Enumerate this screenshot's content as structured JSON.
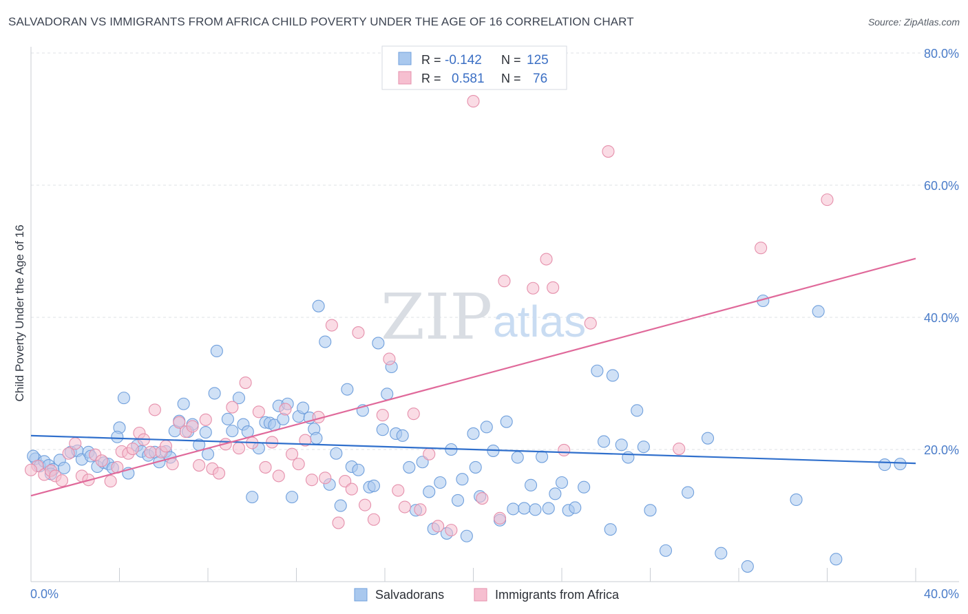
{
  "title": "SALVADORAN VS IMMIGRANTS FROM AFRICA CHILD POVERTY UNDER THE AGE OF 16 CORRELATION CHART",
  "source": "Source: ZipAtlas.com",
  "watermark": {
    "zip": "ZIP",
    "atlas": "atlas"
  },
  "legend": {
    "row1": {
      "r_label": "R =",
      "r_value": "-0.142",
      "n_label": "N =",
      "n_value": "125"
    },
    "row2": {
      "r_label": "R =",
      "r_value": "0.581",
      "n_label": "N =",
      "n_value": "76"
    }
  },
  "colors": {
    "blue_fill": "#a9c8ee",
    "blue_stroke": "#6f9fdc",
    "blue_line": "#2f6fcc",
    "pink_fill": "#f6bfd0",
    "pink_stroke": "#e58fab",
    "pink_line": "#e0699a",
    "grid": "#dde1e6",
    "axis_text": "#4a7cc9"
  },
  "chart_data": {
    "type": "scatter",
    "title": "SALVADORAN VS IMMIGRANTS FROM AFRICA CHILD POVERTY UNDER THE AGE OF 16 CORRELATION CHART",
    "xlabel": "",
    "ylabel": "Child Poverty Under the Age of 16",
    "xlim": [
      0,
      40
    ],
    "ylim": [
      0,
      80
    ],
    "x_tick_labels": [
      "0.0%",
      "40.0%"
    ],
    "y_ticks": [
      20,
      40,
      60,
      80
    ],
    "y_tick_labels": [
      "20.0%",
      "40.0%",
      "60.0%",
      "80.0%"
    ],
    "grid": true,
    "legend_position": "top-center",
    "series": [
      {
        "name": "Salvadorans",
        "color": "#a9c8ee",
        "R": -0.142,
        "N": 125,
        "trend": {
          "x": [
            0,
            40
          ],
          "y": [
            22.1,
            17.9
          ]
        },
        "points": [
          [
            0.2,
            18.6
          ],
          [
            0.4,
            17.5
          ],
          [
            0.6,
            18.2
          ],
          [
            0.8,
            17.6
          ],
          [
            1.0,
            17.0
          ],
          [
            1.3,
            18.4
          ],
          [
            1.5,
            17.2
          ],
          [
            1.8,
            19.6
          ],
          [
            2.1,
            19.8
          ],
          [
            2.3,
            18.5
          ],
          [
            2.6,
            19.6
          ],
          [
            2.7,
            19.0
          ],
          [
            3.0,
            17.4
          ],
          [
            3.3,
            18.0
          ],
          [
            3.5,
            17.8
          ],
          [
            3.7,
            17.2
          ],
          [
            4.0,
            23.3
          ],
          [
            4.2,
            27.8
          ],
          [
            4.4,
            16.4
          ],
          [
            4.8,
            20.6
          ],
          [
            5.0,
            19.7
          ],
          [
            5.3,
            19.1
          ],
          [
            5.6,
            19.6
          ],
          [
            5.8,
            18.1
          ],
          [
            6.1,
            19.7
          ],
          [
            6.3,
            18.8
          ],
          [
            6.5,
            22.8
          ],
          [
            6.7,
            24.3
          ],
          [
            6.9,
            26.9
          ],
          [
            7.1,
            22.7
          ],
          [
            7.3,
            23.8
          ],
          [
            7.6,
            20.7
          ],
          [
            7.9,
            22.6
          ],
          [
            8.0,
            19.3
          ],
          [
            8.3,
            28.5
          ],
          [
            8.4,
            34.9
          ],
          [
            8.9,
            24.6
          ],
          [
            9.1,
            22.8
          ],
          [
            9.4,
            27.8
          ],
          [
            9.6,
            23.8
          ],
          [
            9.8,
            22.7
          ],
          [
            10.0,
            12.8
          ],
          [
            10.3,
            20.2
          ],
          [
            10.6,
            24.1
          ],
          [
            10.8,
            24.0
          ],
          [
            11.0,
            23.7
          ],
          [
            11.2,
            26.6
          ],
          [
            11.4,
            24.6
          ],
          [
            11.6,
            26.9
          ],
          [
            11.8,
            12.8
          ],
          [
            12.1,
            25.0
          ],
          [
            12.3,
            26.3
          ],
          [
            12.6,
            24.8
          ],
          [
            12.8,
            23.1
          ],
          [
            13.0,
            41.7
          ],
          [
            13.3,
            36.3
          ],
          [
            13.5,
            14.7
          ],
          [
            13.8,
            19.4
          ],
          [
            14.0,
            11.5
          ],
          [
            14.3,
            29.1
          ],
          [
            14.5,
            17.4
          ],
          [
            14.8,
            16.9
          ],
          [
            15.0,
            25.9
          ],
          [
            15.3,
            14.3
          ],
          [
            15.5,
            14.5
          ],
          [
            15.7,
            36.1
          ],
          [
            15.9,
            23.0
          ],
          [
            16.1,
            28.4
          ],
          [
            16.3,
            32.5
          ],
          [
            16.5,
            22.4
          ],
          [
            16.8,
            22.1
          ],
          [
            17.1,
            17.3
          ],
          [
            17.4,
            10.8
          ],
          [
            17.7,
            18.1
          ],
          [
            18.0,
            13.6
          ],
          [
            18.2,
            8.0
          ],
          [
            18.5,
            15.0
          ],
          [
            18.8,
            7.3
          ],
          [
            19.0,
            20.0
          ],
          [
            19.3,
            12.3
          ],
          [
            19.5,
            15.5
          ],
          [
            19.7,
            6.9
          ],
          [
            20.0,
            22.4
          ],
          [
            20.3,
            12.9
          ],
          [
            20.6,
            23.4
          ],
          [
            20.9,
            19.8
          ],
          [
            21.2,
            9.3
          ],
          [
            21.5,
            24.2
          ],
          [
            21.8,
            11.0
          ],
          [
            22.0,
            18.8
          ],
          [
            22.3,
            11.1
          ],
          [
            22.6,
            14.6
          ],
          [
            22.8,
            10.9
          ],
          [
            23.1,
            18.9
          ],
          [
            23.4,
            11.1
          ],
          [
            23.7,
            13.3
          ],
          [
            24.0,
            15.0
          ],
          [
            24.3,
            10.8
          ],
          [
            24.6,
            11.2
          ],
          [
            25.0,
            14.3
          ],
          [
            25.6,
            31.9
          ],
          [
            25.9,
            21.2
          ],
          [
            26.2,
            7.9
          ],
          [
            26.3,
            31.2
          ],
          [
            26.7,
            20.7
          ],
          [
            27.0,
            18.8
          ],
          [
            27.4,
            25.9
          ],
          [
            27.7,
            20.4
          ],
          [
            28.0,
            10.8
          ],
          [
            28.7,
            4.7
          ],
          [
            29.7,
            13.5
          ],
          [
            30.6,
            21.7
          ],
          [
            31.2,
            4.3
          ],
          [
            32.4,
            2.3
          ],
          [
            33.1,
            42.5
          ],
          [
            34.6,
            12.4
          ],
          [
            35.6,
            40.9
          ],
          [
            36.4,
            3.4
          ],
          [
            38.6,
            17.7
          ],
          [
            39.3,
            17.8
          ],
          [
            0.1,
            19.0
          ],
          [
            0.9,
            16.3
          ],
          [
            3.9,
            21.9
          ],
          [
            12.9,
            21.7
          ],
          [
            20.1,
            17.3
          ]
        ]
      },
      {
        "name": "Immigrants from Africa",
        "color": "#f6bfd0",
        "R": 0.581,
        "N": 76,
        "trend": {
          "x": [
            0,
            40
          ],
          "y": [
            13.0,
            48.9
          ]
        },
        "points": [
          [
            0.3,
            17.5
          ],
          [
            0.6,
            16.2
          ],
          [
            0.9,
            16.8
          ],
          [
            1.1,
            16.0
          ],
          [
            1.4,
            15.3
          ],
          [
            1.7,
            19.4
          ],
          [
            2.0,
            20.9
          ],
          [
            2.3,
            16.0
          ],
          [
            2.6,
            15.4
          ],
          [
            2.9,
            19.2
          ],
          [
            3.2,
            18.3
          ],
          [
            3.6,
            15.2
          ],
          [
            3.9,
            17.3
          ],
          [
            4.1,
            19.7
          ],
          [
            4.4,
            19.4
          ],
          [
            4.6,
            20.1
          ],
          [
            4.9,
            22.5
          ],
          [
            5.1,
            21.5
          ],
          [
            5.4,
            19.6
          ],
          [
            5.6,
            26.0
          ],
          [
            5.9,
            19.6
          ],
          [
            6.1,
            20.5
          ],
          [
            6.4,
            17.8
          ],
          [
            6.7,
            24.1
          ],
          [
            7.0,
            22.7
          ],
          [
            7.3,
            23.5
          ],
          [
            7.6,
            17.6
          ],
          [
            7.9,
            24.5
          ],
          [
            8.2,
            17.1
          ],
          [
            8.5,
            16.4
          ],
          [
            8.8,
            20.8
          ],
          [
            9.1,
            26.4
          ],
          [
            9.4,
            20.2
          ],
          [
            9.7,
            30.1
          ],
          [
            10.0,
            21.0
          ],
          [
            10.3,
            25.7
          ],
          [
            10.6,
            17.3
          ],
          [
            10.9,
            21.1
          ],
          [
            11.2,
            16.0
          ],
          [
            11.5,
            26.1
          ],
          [
            11.8,
            19.3
          ],
          [
            12.1,
            17.8
          ],
          [
            12.4,
            21.4
          ],
          [
            12.7,
            15.4
          ],
          [
            13.0,
            24.9
          ],
          [
            13.3,
            15.7
          ],
          [
            13.6,
            38.8
          ],
          [
            13.9,
            8.9
          ],
          [
            14.2,
            15.2
          ],
          [
            14.5,
            14.0
          ],
          [
            14.8,
            37.7
          ],
          [
            15.1,
            11.6
          ],
          [
            15.5,
            9.4
          ],
          [
            15.9,
            25.2
          ],
          [
            16.2,
            33.7
          ],
          [
            16.6,
            13.8
          ],
          [
            16.9,
            11.3
          ],
          [
            17.3,
            25.4
          ],
          [
            17.6,
            10.9
          ],
          [
            18.0,
            19.3
          ],
          [
            18.4,
            8.4
          ],
          [
            19.0,
            7.8
          ],
          [
            20.0,
            72.7
          ],
          [
            20.4,
            12.6
          ],
          [
            21.2,
            9.6
          ],
          [
            21.4,
            45.5
          ],
          [
            22.7,
            44.4
          ],
          [
            23.3,
            48.8
          ],
          [
            23.6,
            44.5
          ],
          [
            24.1,
            19.9
          ],
          [
            25.3,
            39.1
          ],
          [
            26.1,
            65.1
          ],
          [
            29.3,
            20.1
          ],
          [
            33.0,
            50.5
          ],
          [
            36.0,
            57.8
          ],
          [
            0.0,
            16.9
          ]
        ]
      }
    ]
  },
  "bottom_legend": [
    "Salvadorans",
    "Immigrants from Africa"
  ]
}
